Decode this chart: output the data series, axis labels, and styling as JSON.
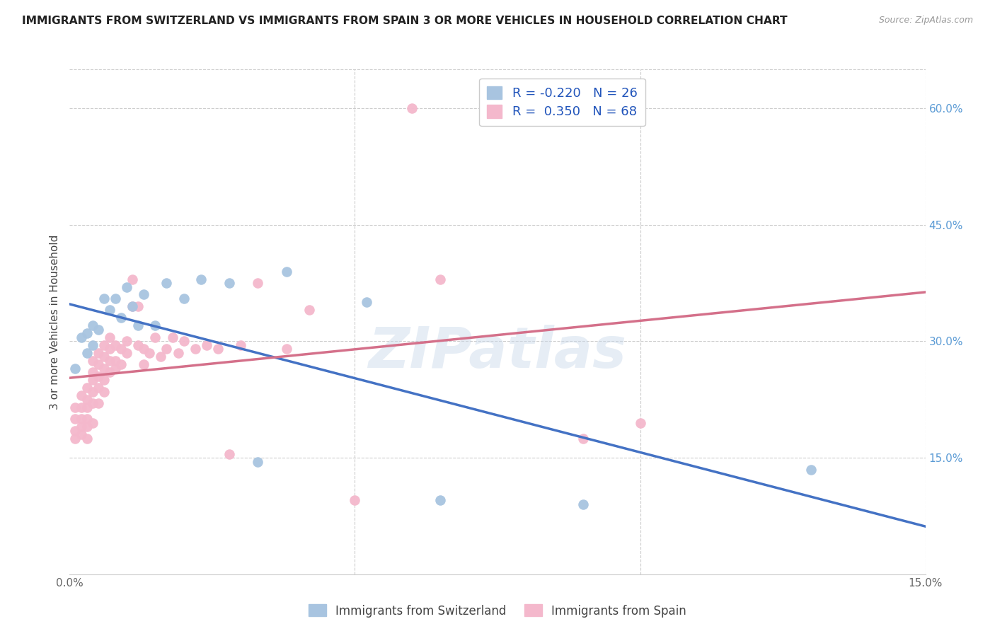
{
  "title": "IMMIGRANTS FROM SWITZERLAND VS IMMIGRANTS FROM SPAIN 3 OR MORE VEHICLES IN HOUSEHOLD CORRELATION CHART",
  "source": "Source: ZipAtlas.com",
  "ylabel": "3 or more Vehicles in Household",
  "xmin": 0.0,
  "xmax": 0.15,
  "ymin": 0.0,
  "ymax": 0.65,
  "yticks_right": [
    0.15,
    0.3,
    0.45,
    0.6
  ],
  "ytick_labels_right": [
    "15.0%",
    "30.0%",
    "45.0%",
    "60.0%"
  ],
  "legend_r_swiss": "-0.220",
  "legend_n_swiss": "26",
  "legend_r_spain": "0.350",
  "legend_n_spain": "68",
  "color_swiss": "#a8c4e0",
  "color_spain": "#f4b8cc",
  "line_color_swiss": "#4472c4",
  "line_color_spain": "#d4708a",
  "watermark": "ZIPatlas",
  "swiss_x": [
    0.001,
    0.002,
    0.003,
    0.003,
    0.004,
    0.004,
    0.005,
    0.006,
    0.007,
    0.008,
    0.009,
    0.01,
    0.011,
    0.012,
    0.013,
    0.015,
    0.017,
    0.02,
    0.023,
    0.028,
    0.033,
    0.038,
    0.052,
    0.065,
    0.09,
    0.13
  ],
  "swiss_y": [
    0.265,
    0.305,
    0.285,
    0.31,
    0.295,
    0.32,
    0.315,
    0.355,
    0.34,
    0.355,
    0.33,
    0.37,
    0.345,
    0.32,
    0.36,
    0.32,
    0.375,
    0.355,
    0.38,
    0.375,
    0.145,
    0.39,
    0.35,
    0.095,
    0.09,
    0.135
  ],
  "spain_x": [
    0.001,
    0.001,
    0.001,
    0.001,
    0.002,
    0.002,
    0.002,
    0.002,
    0.002,
    0.003,
    0.003,
    0.003,
    0.003,
    0.003,
    0.003,
    0.004,
    0.004,
    0.004,
    0.004,
    0.004,
    0.004,
    0.005,
    0.005,
    0.005,
    0.005,
    0.005,
    0.006,
    0.006,
    0.006,
    0.006,
    0.006,
    0.007,
    0.007,
    0.007,
    0.007,
    0.008,
    0.008,
    0.008,
    0.009,
    0.009,
    0.01,
    0.01,
    0.011,
    0.011,
    0.012,
    0.012,
    0.013,
    0.013,
    0.014,
    0.015,
    0.016,
    0.017,
    0.018,
    0.019,
    0.02,
    0.022,
    0.024,
    0.026,
    0.028,
    0.03,
    0.033,
    0.038,
    0.042,
    0.05,
    0.06,
    0.065,
    0.09,
    0.1
  ],
  "spain_y": [
    0.215,
    0.2,
    0.185,
    0.175,
    0.23,
    0.215,
    0.2,
    0.19,
    0.18,
    0.24,
    0.225,
    0.215,
    0.2,
    0.19,
    0.175,
    0.275,
    0.26,
    0.25,
    0.235,
    0.22,
    0.195,
    0.285,
    0.27,
    0.255,
    0.24,
    0.22,
    0.295,
    0.28,
    0.265,
    0.25,
    0.235,
    0.305,
    0.29,
    0.275,
    0.26,
    0.295,
    0.275,
    0.265,
    0.29,
    0.27,
    0.3,
    0.285,
    0.38,
    0.345,
    0.345,
    0.295,
    0.29,
    0.27,
    0.285,
    0.305,
    0.28,
    0.29,
    0.305,
    0.285,
    0.3,
    0.29,
    0.295,
    0.29,
    0.155,
    0.295,
    0.375,
    0.29,
    0.34,
    0.095,
    0.6,
    0.38,
    0.175,
    0.195
  ]
}
